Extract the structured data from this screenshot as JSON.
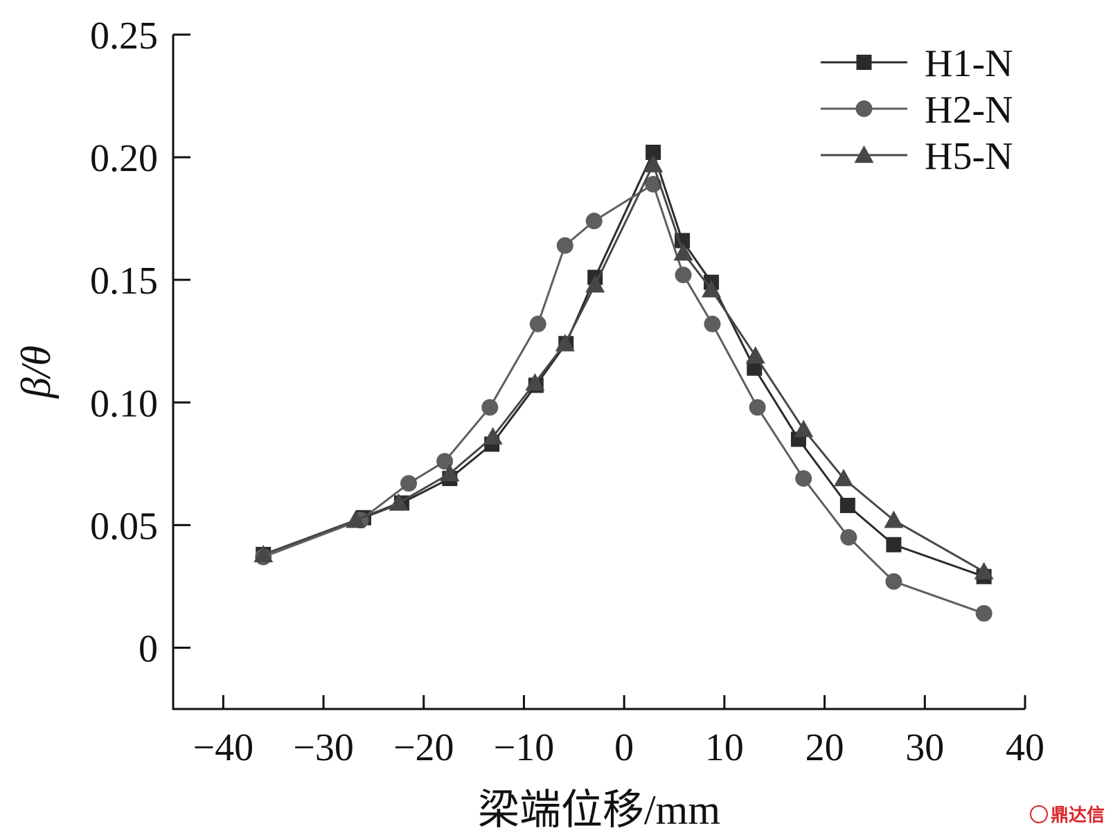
{
  "chart_data": {
    "type": "line",
    "xlabel": "梁端位移/mm",
    "ylabel": "β/θ",
    "xlim": [
      -45,
      40
    ],
    "ylim": [
      -0.025,
      0.25
    ],
    "xticks": [
      -40,
      -30,
      -20,
      -10,
      0,
      10,
      20,
      30,
      40
    ],
    "xtick_labels": [
      "−40",
      "−30",
      "−20",
      "−10",
      "0",
      "10",
      "20",
      "30",
      "40"
    ],
    "yticks": [
      0,
      0.05,
      0.1,
      0.15,
      0.2,
      0.25
    ],
    "ytick_labels": [
      "0",
      "0.05",
      "0.10",
      "0.15",
      "0.20",
      "0.25"
    ],
    "grid": false,
    "legend_position": "top-right",
    "series": [
      {
        "name": "H1-N",
        "marker": "square",
        "color": "#2b2b2b",
        "x": [
          -36,
          -26,
          -22.2,
          -17.4,
          -13.2,
          -8.8,
          -5.8,
          -2.9,
          2.9,
          5.8,
          8.7,
          13.0,
          17.4,
          22.3,
          26.9,
          35.9
        ],
        "y": [
          0.038,
          0.053,
          0.059,
          0.069,
          0.083,
          0.107,
          0.124,
          0.151,
          0.202,
          0.166,
          0.149,
          0.114,
          0.085,
          0.058,
          0.042,
          0.029
        ]
      },
      {
        "name": "H2-N",
        "marker": "circle",
        "color": "#5e5e5e",
        "x": [
          -36,
          -26.3,
          -21.5,
          -17.9,
          -13.4,
          -8.6,
          -5.9,
          -3.0,
          2.9,
          5.9,
          8.8,
          13.3,
          17.9,
          22.4,
          26.9,
          35.9
        ],
        "y": [
          0.037,
          0.052,
          0.067,
          0.076,
          0.098,
          0.132,
          0.164,
          0.174,
          0.189,
          0.152,
          0.132,
          0.098,
          0.069,
          0.045,
          0.027,
          0.014
        ]
      },
      {
        "name": "H5-N",
        "marker": "triangle",
        "color": "#474747",
        "x": [
          -36,
          -26.8,
          -22.5,
          -17.4,
          -13.1,
          -8.9,
          -5.9,
          -2.9,
          2.9,
          5.9,
          8.7,
          13.1,
          17.9,
          21.9,
          26.9,
          35.9
        ],
        "y": [
          0.038,
          0.052,
          0.059,
          0.071,
          0.086,
          0.108,
          0.124,
          0.148,
          0.197,
          0.161,
          0.146,
          0.119,
          0.089,
          0.069,
          0.052,
          0.031
        ]
      }
    ]
  },
  "watermark": {
    "text": "鼎达信",
    "color": "#d9262c"
  }
}
